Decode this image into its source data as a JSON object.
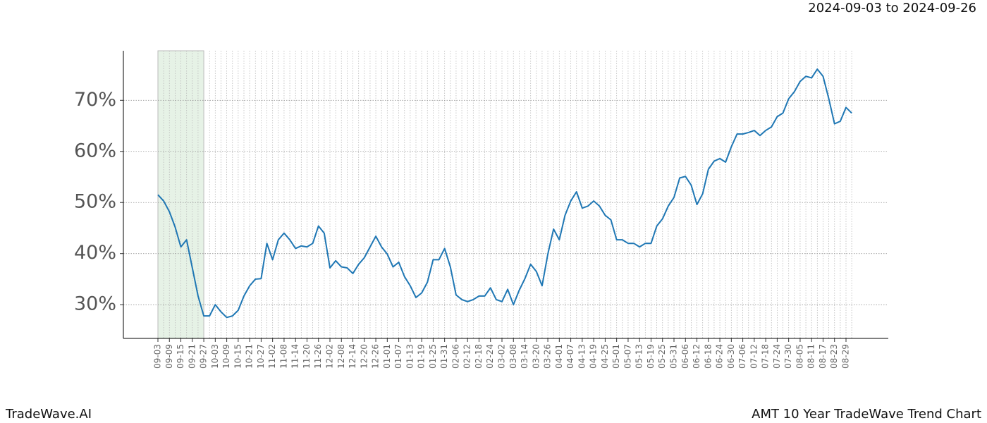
{
  "chart_data": {
    "type": "line",
    "date_range": "2024-09-03 to 2024-09-26",
    "footer_left": "TradeWave.AI",
    "footer_right": "AMT 10 Year TradeWave Trend Chart",
    "categories": [
      "09-03",
      null,
      "09-09",
      null,
      "09-15",
      null,
      "09-21",
      null,
      "09-27",
      null,
      "10-03",
      null,
      "10-09",
      null,
      "10-15",
      null,
      "10-21",
      null,
      "10-27",
      null,
      "11-02",
      null,
      "11-08",
      null,
      "11-14",
      null,
      "11-20",
      null,
      "11-26",
      null,
      "12-02",
      null,
      "12-08",
      null,
      "12-14",
      null,
      "12-20",
      null,
      "12-26",
      null,
      "01-01",
      null,
      "01-07",
      null,
      "01-13",
      null,
      "01-19",
      null,
      "01-25",
      null,
      "01-31",
      null,
      "02-06",
      null,
      "02-12",
      null,
      "02-18",
      null,
      "02-24",
      null,
      "03-02",
      null,
      "03-08",
      null,
      "03-14",
      null,
      "03-20",
      null,
      "03-26",
      null,
      "04-01",
      null,
      "04-07",
      null,
      "04-13",
      null,
      "04-19",
      null,
      "04-25",
      null,
      "05-01",
      null,
      "05-07",
      null,
      "05-13",
      null,
      "05-19",
      null,
      "05-25",
      null,
      "05-31",
      null,
      "06-06",
      null,
      "06-12",
      null,
      "06-18",
      null,
      "06-24",
      null,
      "06-30",
      null,
      "07-06",
      null,
      "07-12",
      null,
      "07-18",
      null,
      "07-24",
      null,
      "07-30",
      null,
      "08-05",
      null,
      "08-11",
      null,
      "08-17",
      null,
      "08-23",
      null,
      "08-29",
      null
    ],
    "series": [
      {
        "color": "#1f77b4",
        "values": [
          51.5,
          50.3,
          48.2,
          45.2,
          41.3,
          42.7,
          37.2,
          31.7,
          27.8,
          27.8,
          30,
          28.6,
          27.5,
          27.8,
          28.9,
          31.7,
          33.7,
          35,
          35.1,
          42,
          38.8,
          42.7,
          44,
          42.7,
          41,
          41.5,
          41.3,
          42,
          45.4,
          44,
          37.2,
          38.6,
          37.4,
          37.2,
          36.1,
          37.9,
          39.2,
          41.3,
          43.4,
          41.3,
          39.9,
          37.4,
          38.3,
          35.5,
          33.7,
          31.4,
          32.3,
          34.4,
          38.8,
          38.8,
          41,
          37.4,
          31.9,
          31,
          30.6,
          31,
          31.7,
          31.7,
          33.3,
          31,
          30.6,
          33,
          30,
          32.8,
          35.1,
          37.9,
          36.5,
          33.7,
          39.9,
          44.8,
          42.7,
          47.5,
          50.3,
          52.1,
          48.9,
          49.3,
          50.3,
          49.3,
          47.5,
          46.6,
          42.7,
          42.7,
          42,
          42,
          41.3,
          42,
          42,
          45.4,
          46.8,
          49.3,
          51,
          54.8,
          55.1,
          53.4,
          49.6,
          51.7,
          56.5,
          58.1,
          58.6,
          57.9,
          60.9,
          63.4,
          63.4,
          63.7,
          64.1,
          63.1,
          64.1,
          64.8,
          66.8,
          67.5,
          70.3,
          71.7,
          73.7,
          74.7,
          74.4,
          76.1,
          74.7,
          70.3,
          65.4,
          65.9,
          68.6,
          67.5
        ]
      }
    ],
    "shaded_range": [
      "09-03",
      "09-27"
    ],
    "shade_color": "#e6f2e6",
    "ylim": [
      23.4,
      79.7
    ],
    "yticks": [
      {
        "value": 30,
        "label": "30%"
      },
      {
        "value": 40,
        "label": "40%"
      },
      {
        "value": 50,
        "label": "50%"
      },
      {
        "value": 60,
        "label": "60%"
      },
      {
        "value": 70,
        "label": "70%"
      }
    ],
    "grid": true
  }
}
